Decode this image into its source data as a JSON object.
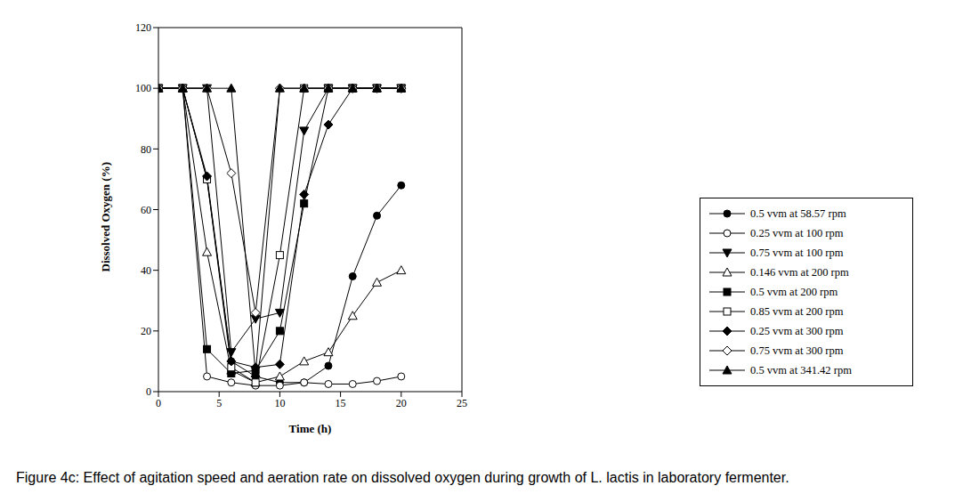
{
  "chart_data": {
    "type": "line",
    "title": "Figure 4c: Effect of agitation speed and aeration rate on dissolved oxygen during growth of L. lactis in laboratory fermenter.",
    "x_label": "Time (h)",
    "y_label": "Dissolved Oxygen (%)",
    "x": [
      0,
      2,
      4,
      6,
      8,
      10,
      12,
      14,
      16,
      18,
      20
    ],
    "xlim": [
      0,
      25
    ],
    "xticks": [
      0,
      5,
      10,
      15,
      20,
      25
    ],
    "ylim": [
      0,
      120
    ],
    "yticks": [
      0,
      20,
      40,
      60,
      80,
      100,
      120
    ],
    "grid": false,
    "legend": "right",
    "series": [
      {
        "name": "0.5 vvm at 58.57 rpm",
        "color": "#000000",
        "marker": "circle",
        "values": [
          100,
          100,
          70,
          10,
          5,
          3,
          3,
          8.5,
          38,
          58,
          68
        ]
      },
      {
        "name": "0.25 vvm at 100 rpm",
        "color": "#000000",
        "marker": "circle-open",
        "values": [
          100,
          100,
          5,
          3,
          2,
          2,
          3,
          2.5,
          2.5,
          3.5,
          5
        ]
      },
      {
        "name": "0.75 vvm at 100 rpm",
        "color": "#000000",
        "marker": "triangle-down",
        "values": [
          100,
          100,
          100,
          13,
          24,
          26,
          86,
          100,
          100,
          100,
          100
        ]
      },
      {
        "name": "0.146 vvm at 200 rpm",
        "color": "#000000",
        "marker": "triangle-up-open",
        "values": [
          100,
          100,
          46,
          7,
          3,
          5,
          10,
          13,
          25,
          36,
          40
        ]
      },
      {
        "name": "0.5 vvm at 200 rpm",
        "color": "#000000",
        "marker": "square",
        "values": [
          100,
          100,
          14,
          6,
          7,
          20,
          62,
          100,
          100,
          100,
          100
        ]
      },
      {
        "name": "0.85 vvm at 200 rpm",
        "color": "#000000",
        "marker": "square-open",
        "values": [
          100,
          100,
          70,
          8,
          3,
          45,
          100,
          100,
          100,
          100,
          100
        ]
      },
      {
        "name": "0.25 vvm at 300 rpm",
        "color": "#000000",
        "marker": "diamond",
        "values": [
          100,
          100,
          71,
          10,
          8,
          9,
          65,
          88,
          100,
          100,
          100
        ]
      },
      {
        "name": "0.75 vvm at 300 rpm",
        "color": "#000000",
        "marker": "diamond-open",
        "values": [
          100,
          100,
          100,
          72,
          26,
          100,
          100,
          100,
          100,
          100,
          100
        ]
      },
      {
        "name": "0.5 vvm at 341.42 rpm",
        "color": "#000000",
        "marker": "triangle-up",
        "values": [
          100,
          100,
          100,
          100,
          6,
          100,
          100,
          100,
          100,
          100,
          100
        ]
      }
    ]
  }
}
